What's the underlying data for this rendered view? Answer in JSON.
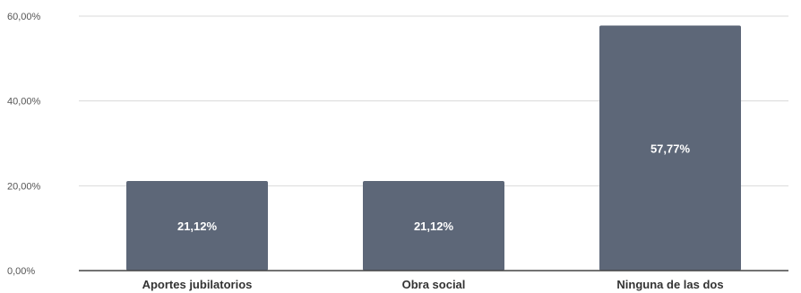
{
  "chart_data": {
    "type": "bar",
    "title": "",
    "xlabel": "",
    "ylabel": "",
    "categories": [
      "Aportes jubilatorios",
      "Obra social",
      "Ninguna de las dos"
    ],
    "values": [
      21.12,
      21.12,
      57.77
    ],
    "data_labels": [
      "21,12%",
      "21,12%",
      "57,77%"
    ],
    "ylim": [
      0,
      60
    ],
    "y_ticks": [
      0,
      20,
      40,
      60
    ],
    "y_tick_labels": [
      "0,00%",
      "20,00%",
      "40,00%",
      "60,00%"
    ],
    "grid": true,
    "legend": "none",
    "colors": {
      "bar": "#5d6778",
      "grid": "#d9d9d9",
      "axis": "#444444",
      "bar_label": "#ffffff"
    }
  }
}
